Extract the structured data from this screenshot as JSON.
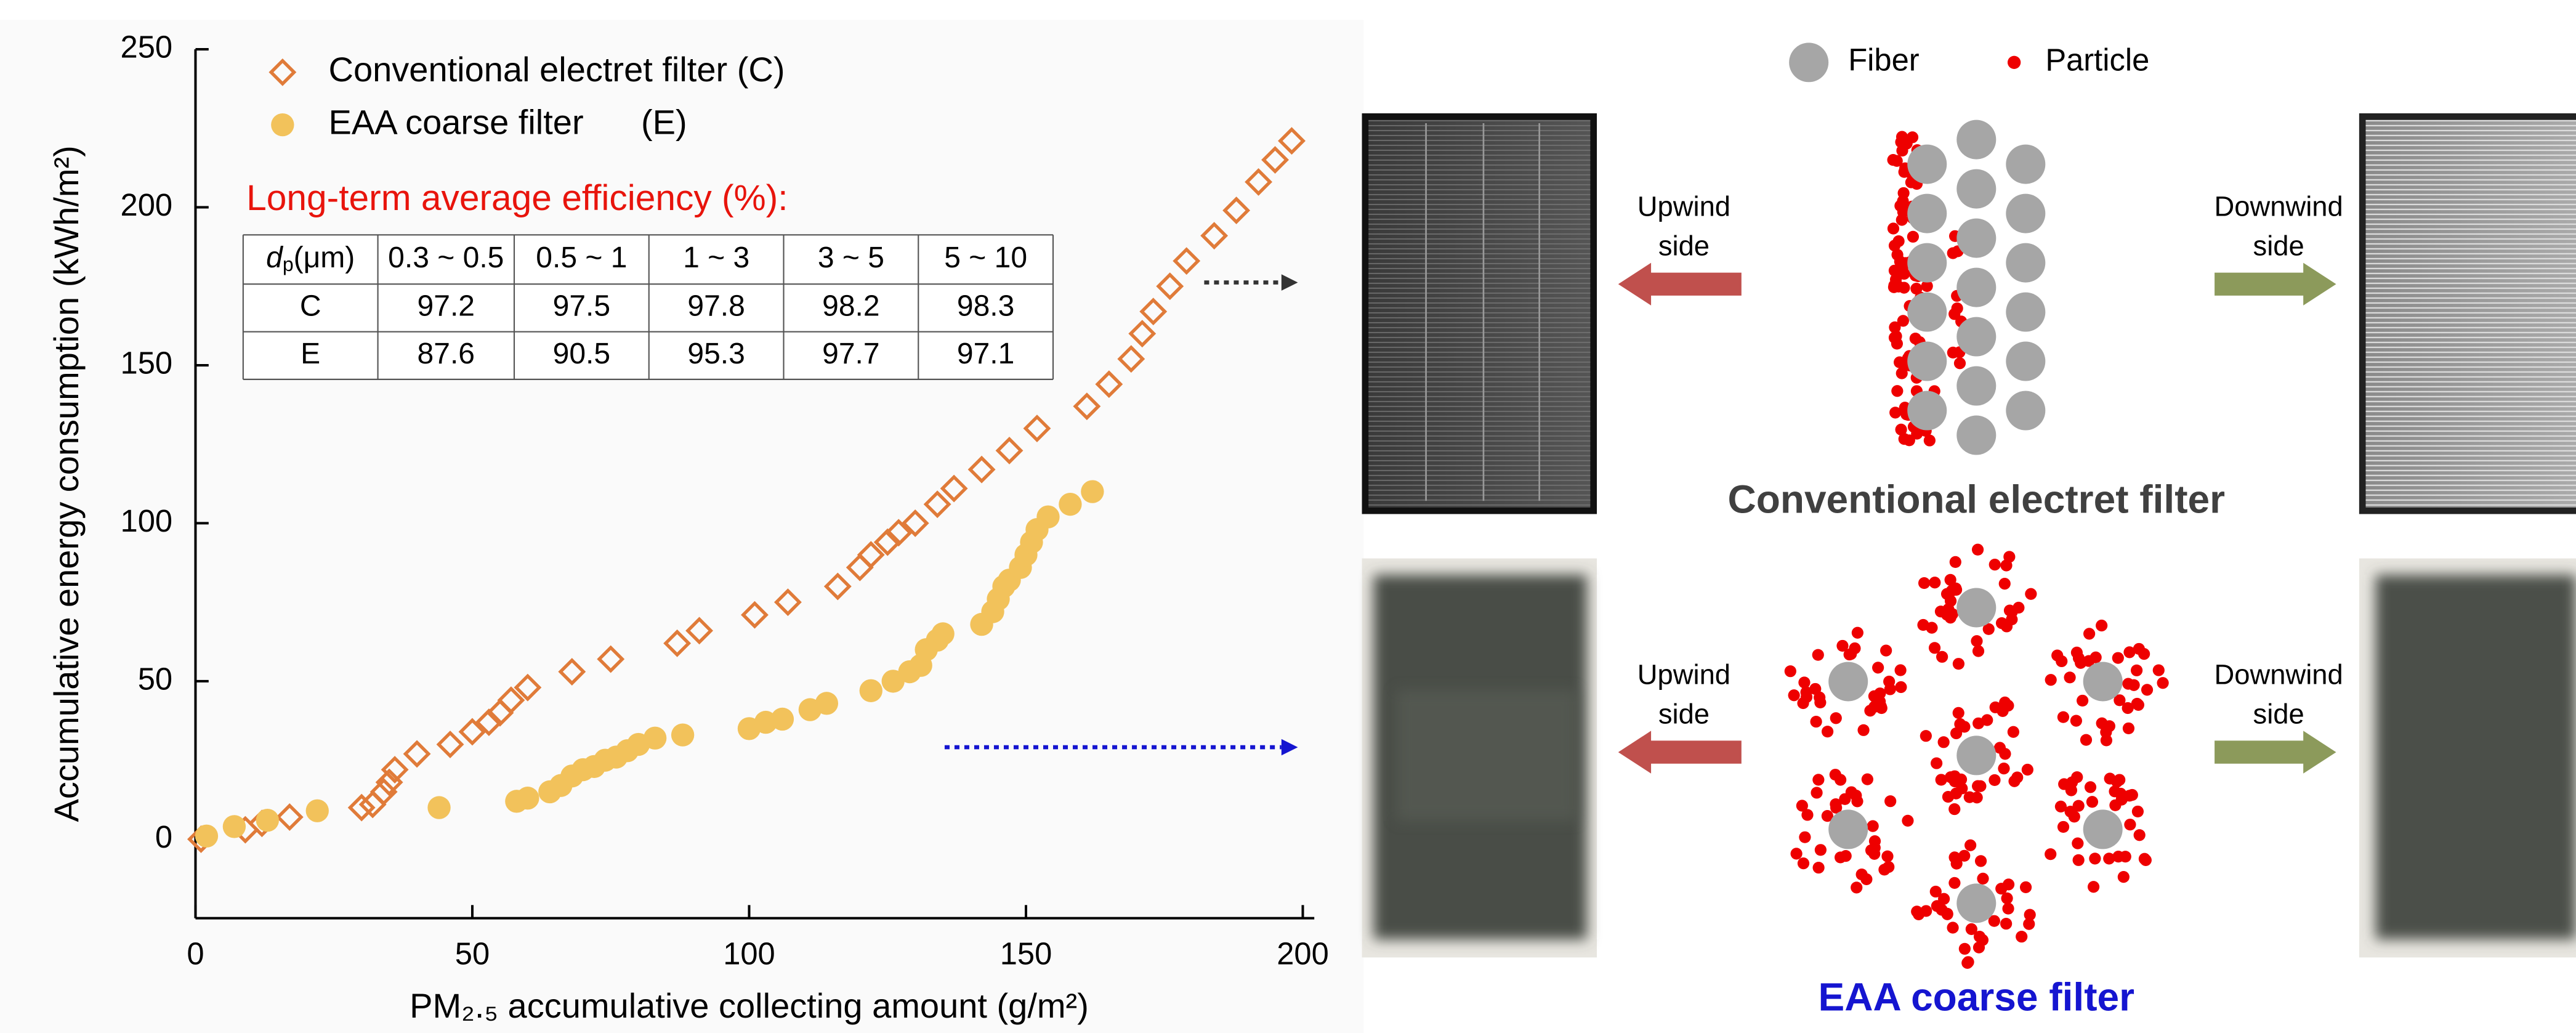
{
  "chart_data": {
    "type": "scatter",
    "ylabel": "Accumulative energy consumption (kWh/m²)",
    "xlabel": "PM₂.₅ accumulative collecting amount (g/m²)",
    "xlim": [
      0,
      200
    ],
    "ylim": [
      -25,
      250
    ],
    "xticks": [
      0,
      50,
      100,
      150,
      200
    ],
    "yticks": [
      0,
      50,
      100,
      150,
      200,
      250
    ],
    "series": [
      {
        "name": "Conventional electret filter (C)",
        "color": "#e07b39",
        "marker": "open-diamond",
        "x": [
          1,
          9,
          12,
          17,
          30,
          32,
          34,
          35,
          36,
          40,
          46,
          50,
          53,
          55,
          57,
          60,
          68,
          75,
          87,
          91,
          101,
          107,
          116,
          120,
          122,
          125,
          127,
          130,
          134,
          137,
          142,
          147,
          152,
          161,
          165,
          169,
          171,
          173,
          176,
          179,
          184,
          188,
          192,
          195,
          198
        ],
        "values": [
          0,
          3,
          5,
          7,
          10,
          11,
          15,
          18,
          22,
          27,
          30,
          34,
          37,
          40,
          44,
          48,
          53,
          57,
          62,
          66,
          71,
          75,
          80,
          86,
          90,
          94,
          97,
          100,
          106,
          111,
          117,
          123,
          130,
          137,
          144,
          152,
          160,
          167,
          175,
          183,
          191,
          199,
          208,
          215,
          221
        ]
      },
      {
        "name": "EAA coarse filter      (E)",
        "color": "#f2c25b",
        "marker": "circle",
        "x": [
          2,
          7,
          13,
          22,
          44,
          58,
          60,
          64,
          66,
          68,
          70,
          72,
          74,
          76,
          78,
          80,
          83,
          88,
          100,
          103,
          106,
          111,
          114,
          122,
          126,
          129,
          131,
          132,
          134,
          135,
          142,
          144,
          145,
          146,
          147,
          149,
          150,
          151,
          152,
          154,
          158,
          162
        ],
        "values": [
          1,
          4,
          6,
          9,
          10,
          12,
          13,
          15,
          17,
          20,
          22,
          23,
          25,
          26,
          28,
          30,
          32,
          33,
          35,
          37,
          38,
          41,
          43,
          47,
          50,
          53,
          55,
          60,
          63,
          65,
          68,
          72,
          76,
          80,
          82,
          86,
          90,
          94,
          98,
          102,
          106,
          110
        ]
      }
    ],
    "table_title": "Long-term average efficiency (%):",
    "table_header": {
      "symbol": "d",
      "subscript": "p",
      "unit": "(μm)",
      "ranges": [
        "0.3 ~ 0.5",
        "0.5 ~ 1",
        "1 ~ 3",
        "3 ~ 5",
        "5 ~ 10"
      ]
    },
    "table_rows": [
      {
        "label": "C",
        "values": [
          97.2,
          97.5,
          97.8,
          98.2,
          98.3
        ]
      },
      {
        "label": "E",
        "values": [
          87.6,
          90.5,
          95.3,
          97.7,
          97.1
        ]
      }
    ]
  },
  "diagram": {
    "legend": [
      "Fiber",
      "Particle"
    ],
    "panels": [
      {
        "title": "Conventional electret filter",
        "upwind": [
          "Upwind",
          "side"
        ],
        "downwind": [
          "Downwind",
          "side"
        ]
      },
      {
        "title": "EAA coarse filter",
        "upwind": [
          "Upwind",
          "side"
        ],
        "downwind": [
          "Downwind",
          "side"
        ]
      }
    ]
  }
}
